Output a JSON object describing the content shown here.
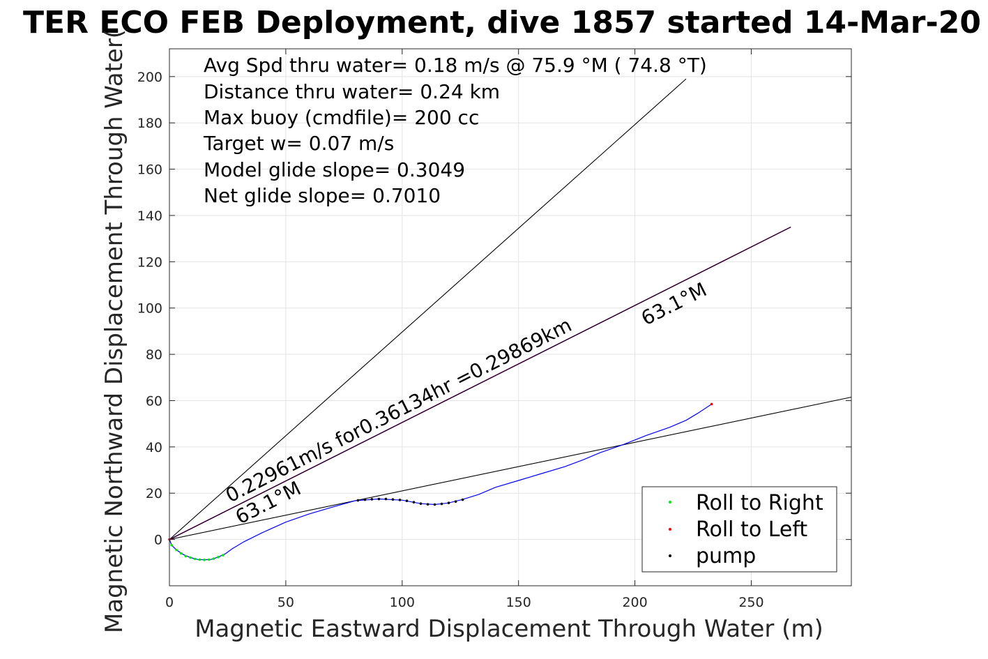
{
  "chart_data": {
    "type": "scatter",
    "title": "TER ECO FEB Deployment, dive 1857 started 14-Mar-20",
    "xlabel": "Magnetic Eastward Displacement Through Water (m)",
    "ylabel": "Magnetic Northward Displacement Through Water(",
    "xlim": [
      0,
      293
    ],
    "ylim": [
      -20,
      212
    ],
    "xticks": [
      "0",
      "50",
      "100",
      "150",
      "200",
      "250"
    ],
    "yticks": [
      "0",
      "20",
      "40",
      "60",
      "80",
      "100",
      "120",
      "140",
      "160",
      "180",
      "200"
    ],
    "grid": true,
    "info_lines": [
      "Avg Spd thru water=  0.18 m/s @  75.9 °M ( 74.8 °T)",
      "Distance thru water=  0.24 km",
      "Max buoy (cmdfile)= 200 cc",
      "Target w= 0.07 m/s",
      "Model glide slope= 0.3049",
      "Net glide slope= 0.7010"
    ],
    "annotations": {
      "current_vector": "0.22961m/s for0.36134hr =0.29869km",
      "heading_near": "63.1°M",
      "heading_far": "63.1°M"
    },
    "reference_lines": [
      {
        "color": "#000000",
        "points": [
          [
            0,
            0
          ],
          [
            222,
            199
          ]
        ]
      },
      {
        "color": "#000000",
        "points": [
          [
            0,
            0
          ],
          [
            293,
            61.5
          ]
        ]
      },
      {
        "color": "#cc00cc",
        "points": [
          [
            0,
            0
          ],
          [
            267,
            135
          ]
        ]
      },
      {
        "color": "#000000",
        "points": [
          [
            0,
            0
          ],
          [
            267,
            135
          ]
        ]
      }
    ],
    "track": {
      "color": "#0000ff",
      "points": [
        [
          0,
          0
        ],
        [
          1,
          -2.5
        ],
        [
          3,
          -4.5
        ],
        [
          6,
          -6.5
        ],
        [
          9,
          -7.8
        ],
        [
          12,
          -8.6
        ],
        [
          15,
          -8.8
        ],
        [
          18,
          -8.6
        ],
        [
          21,
          -7.6
        ],
        [
          24,
          -6.2
        ],
        [
          27,
          -4
        ],
        [
          32,
          -1
        ],
        [
          40,
          3
        ],
        [
          50,
          7.5
        ],
        [
          60,
          11
        ],
        [
          70,
          14
        ],
        [
          80,
          16.8
        ],
        [
          90,
          17.5
        ],
        [
          100,
          17
        ],
        [
          108,
          15.5
        ],
        [
          114,
          15.1
        ],
        [
          120,
          15.8
        ],
        [
          126,
          17.3
        ],
        [
          133,
          19.5
        ],
        [
          140,
          22.5
        ],
        [
          150,
          25.5
        ],
        [
          160,
          28.5
        ],
        [
          170,
          31.5
        ],
        [
          178,
          34.5
        ],
        [
          185,
          37.5
        ],
        [
          195,
          41
        ],
        [
          205,
          45
        ],
        [
          215,
          48.5
        ],
        [
          222,
          51.5
        ],
        [
          227,
          54.5
        ],
        [
          233,
          58.5
        ]
      ]
    },
    "series": [
      {
        "name": "Roll to Right",
        "color": "#00ee00",
        "points": [
          [
            1,
            -2.5
          ],
          [
            3,
            -4.5
          ],
          [
            5,
            -6
          ],
          [
            7,
            -7.2
          ],
          [
            9,
            -7.8
          ],
          [
            11,
            -8.4
          ],
          [
            13,
            -8.7
          ],
          [
            15,
            -8.8
          ],
          [
            17,
            -8.7
          ],
          [
            19,
            -8.3
          ],
          [
            21,
            -7.6
          ],
          [
            23,
            -6.8
          ]
        ]
      },
      {
        "name": "Roll to Left",
        "color": "#ff0000",
        "points": [
          [
            0,
            0
          ],
          [
            233,
            58.5
          ]
        ]
      },
      {
        "name": "pump",
        "color": "#000000",
        "points": [
          [
            81,
            16.9
          ],
          [
            84,
            17.2
          ],
          [
            87,
            17.4
          ],
          [
            90,
            17.5
          ],
          [
            93,
            17.5
          ],
          [
            96,
            17.3
          ],
          [
            99,
            17.1
          ],
          [
            102,
            16.7
          ],
          [
            105,
            16.1
          ],
          [
            108,
            15.5
          ],
          [
            111,
            15.2
          ],
          [
            114,
            15.1
          ],
          [
            117,
            15.4
          ],
          [
            120,
            15.8
          ],
          [
            123,
            16.4
          ],
          [
            126,
            17.2
          ]
        ]
      }
    ],
    "legend_position": "bottom-right"
  }
}
